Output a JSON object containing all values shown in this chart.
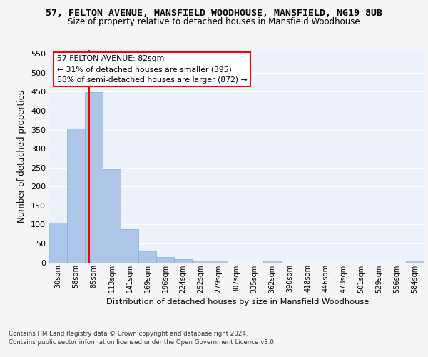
{
  "title_line1": "57, FELTON AVENUE, MANSFIELD WOODHOUSE, MANSFIELD, NG19 8UB",
  "title_line2": "Size of property relative to detached houses in Mansfield Woodhouse",
  "xlabel": "Distribution of detached houses by size in Mansfield Woodhouse",
  "ylabel": "Number of detached properties",
  "footer_line1": "Contains HM Land Registry data © Crown copyright and database right 2024.",
  "footer_line2": "Contains public sector information licensed under the Open Government Licence v3.0.",
  "categories": [
    "30sqm",
    "58sqm",
    "85sqm",
    "113sqm",
    "141sqm",
    "169sqm",
    "196sqm",
    "224sqm",
    "252sqm",
    "279sqm",
    "307sqm",
    "335sqm",
    "362sqm",
    "390sqm",
    "418sqm",
    "446sqm",
    "473sqm",
    "501sqm",
    "529sqm",
    "556sqm",
    "584sqm"
  ],
  "values": [
    104,
    353,
    449,
    246,
    87,
    30,
    14,
    9,
    5,
    5,
    0,
    0,
    5,
    0,
    0,
    0,
    0,
    0,
    0,
    0,
    5
  ],
  "bar_color": "#aec6e8",
  "bar_edge_color": "#7bafd4",
  "subject_line_color": "red",
  "subject_line_xindex": 1.73,
  "annotation_line1": "57 FELTON AVENUE: 82sqm",
  "annotation_line2": "← 31% of detached houses are smaller (395)",
  "annotation_line3": "68% of semi-detached houses are larger (872) →",
  "ylim": [
    0,
    560
  ],
  "yticks": [
    0,
    50,
    100,
    150,
    200,
    250,
    300,
    350,
    400,
    450,
    500,
    550
  ],
  "bg_color": "#edf2fa",
  "grid_color": "#ffffff",
  "fig_bg_color": "#f5f5f5"
}
